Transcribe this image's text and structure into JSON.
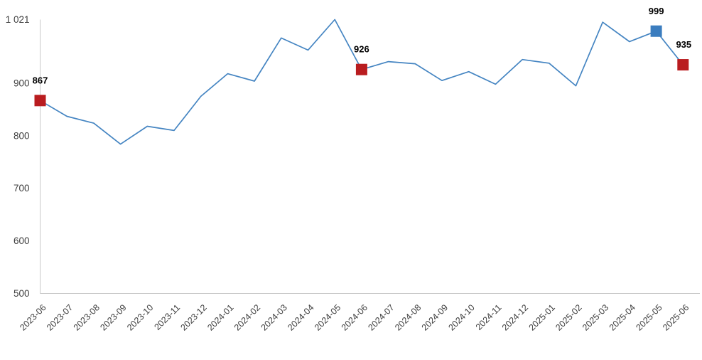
{
  "chart_data": {
    "type": "line",
    "title": "",
    "xlabel": "",
    "ylabel": "",
    "x": [
      "2023-06",
      "2023-07",
      "2023-08",
      "2023-09",
      "2023-10",
      "2023-11",
      "2023-12",
      "2024-01",
      "2024-02",
      "2024-03",
      "2024-04",
      "2024-05",
      "2024-06",
      "2024-07",
      "2024-08",
      "2024-09",
      "2024-10",
      "2024-11",
      "2024-12",
      "2025-01",
      "2025-02",
      "2025-03",
      "2025-04",
      "2025-05",
      "2025-06"
    ],
    "values": [
      867,
      837,
      824,
      784,
      818,
      810,
      875,
      918,
      904,
      986,
      963,
      1021,
      926,
      941,
      937,
      905,
      922,
      898,
      945,
      938,
      895,
      1016,
      979,
      999,
      935
    ],
    "ylim": [
      500,
      1021
    ],
    "y_ticks": [
      {
        "value": 1021,
        "label": "1 021"
      },
      {
        "value": 900,
        "label": "900"
      },
      {
        "value": 800,
        "label": "800"
      },
      {
        "value": 700,
        "label": "700"
      },
      {
        "value": 600,
        "label": "600"
      },
      {
        "value": 500,
        "label": "500"
      }
    ],
    "grid": false,
    "legend": false,
    "highlights": [
      {
        "index": 0,
        "label": "867",
        "color": "#b91c1f"
      },
      {
        "index": 12,
        "label": "926",
        "color": "#b91c1f"
      },
      {
        "index": 23,
        "label": "999",
        "color": "#3b7dbf"
      },
      {
        "index": 24,
        "label": "935",
        "color": "#b91c1f"
      }
    ],
    "colors": {
      "line": "#4585c2",
      "axis": "#c9c9c9",
      "tick_text": "#3d3d3d",
      "data_label_text": "#000000",
      "marker_red": "#b91c1f",
      "marker_blue": "#3b7dbf"
    }
  }
}
